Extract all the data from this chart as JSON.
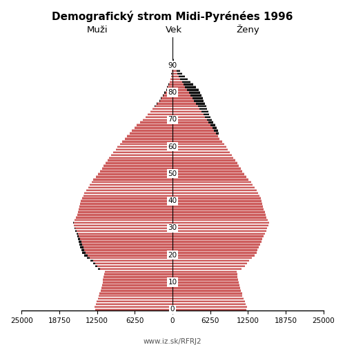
{
  "title": "Demografický strom Midi-Pyrénées 1996",
  "label_men": "Muži",
  "label_women": "Ženy",
  "label_age": "Vek",
  "source": "www.iz.sk/RFRJ2",
  "bar_color_red": "#CD5C5C",
  "bar_color_black": "#111111",
  "xlim": 25000,
  "men_main": [
    12800,
    12900,
    12700,
    12600,
    12400,
    12200,
    12100,
    11900,
    11800,
    11700,
    11600,
    11500,
    11400,
    11300,
    11200,
    12000,
    12500,
    12800,
    13200,
    13700,
    14100,
    14400,
    14600,
    14800,
    15000,
    15100,
    15300,
    15500,
    15700,
    15900,
    16100,
    16300,
    16400,
    16200,
    16000,
    15800,
    15700,
    15500,
    15400,
    15300,
    15200,
    15000,
    14800,
    14600,
    14300,
    14000,
    13700,
    13400,
    13100,
    12700,
    12300,
    12000,
    11700,
    11400,
    11100,
    10800,
    10500,
    10200,
    9800,
    9400,
    9100,
    8700,
    8300,
    7900,
    7500,
    7100,
    6700,
    6300,
    5900,
    5400,
    4900,
    4500,
    4100,
    3700,
    3300,
    2900,
    2500,
    2100,
    1800,
    1500,
    1200,
    950,
    750,
    580,
    440,
    330,
    240,
    170,
    120,
    80,
    55,
    35,
    22,
    14,
    9,
    5,
    3,
    2,
    1,
    1
  ],
  "women_main": [
    12200,
    12300,
    12100,
    12000,
    11800,
    11600,
    11500,
    11300,
    11200,
    11100,
    11000,
    10900,
    10800,
    10700,
    10600,
    11400,
    12000,
    12300,
    12700,
    13200,
    13600,
    13900,
    14100,
    14300,
    14500,
    14700,
    14900,
    15100,
    15300,
    15500,
    15700,
    15900,
    16000,
    15800,
    15600,
    15400,
    15300,
    15100,
    15000,
    14900,
    14800,
    14600,
    14400,
    14200,
    13900,
    13600,
    13300,
    13000,
    12600,
    12200,
    11900,
    11600,
    11300,
    11000,
    10700,
    10400,
    10100,
    9800,
    9500,
    9200,
    8900,
    8600,
    8200,
    7800,
    7500,
    7200,
    6900,
    6600,
    6300,
    6000,
    5700,
    5400,
    5100,
    4800,
    4500,
    4200,
    3900,
    3600,
    3300,
    3000,
    2700,
    2400,
    2100,
    1800,
    1550,
    1300,
    1060,
    840,
    650,
    480,
    340,
    230,
    150,
    95,
    58,
    35,
    20,
    11,
    6,
    3
  ],
  "men_black_extra": [
    0,
    0,
    0,
    0,
    0,
    0,
    0,
    0,
    0,
    0,
    0,
    0,
    0,
    0,
    0,
    300,
    350,
    400,
    450,
    500,
    550,
    600,
    550,
    500,
    450,
    400,
    350,
    300,
    250,
    200,
    150,
    100,
    50,
    0,
    0,
    0,
    0,
    0,
    0,
    0,
    0,
    0,
    0,
    0,
    0,
    0,
    0,
    0,
    0,
    0,
    0,
    0,
    0,
    0,
    0,
    0,
    0,
    0,
    0,
    0,
    0,
    0,
    0,
    0,
    0,
    0,
    0,
    0,
    0,
    0,
    0,
    0,
    0,
    0,
    0,
    80,
    100,
    120,
    130,
    140,
    140,
    130,
    110,
    90,
    70,
    50,
    40,
    30,
    20,
    15,
    10,
    7,
    4,
    2,
    1,
    1,
    0,
    0,
    0,
    0
  ],
  "women_black_extra": [
    0,
    0,
    0,
    0,
    0,
    0,
    0,
    0,
    0,
    0,
    0,
    0,
    0,
    0,
    0,
    0,
    0,
    0,
    0,
    0,
    0,
    0,
    0,
    0,
    0,
    0,
    0,
    0,
    0,
    0,
    0,
    0,
    0,
    0,
    0,
    0,
    0,
    0,
    0,
    0,
    0,
    0,
    0,
    0,
    0,
    0,
    0,
    0,
    0,
    0,
    0,
    0,
    0,
    0,
    0,
    0,
    0,
    0,
    0,
    0,
    0,
    0,
    0,
    0,
    0,
    500,
    600,
    700,
    750,
    800,
    850,
    900,
    1000,
    1100,
    1200,
    1350,
    1500,
    1600,
    1700,
    1800,
    1900,
    2000,
    1800,
    1600,
    1400,
    1200,
    1000,
    800,
    600,
    400,
    280,
    180,
    110,
    65,
    38,
    22,
    12,
    7,
    4,
    2
  ]
}
